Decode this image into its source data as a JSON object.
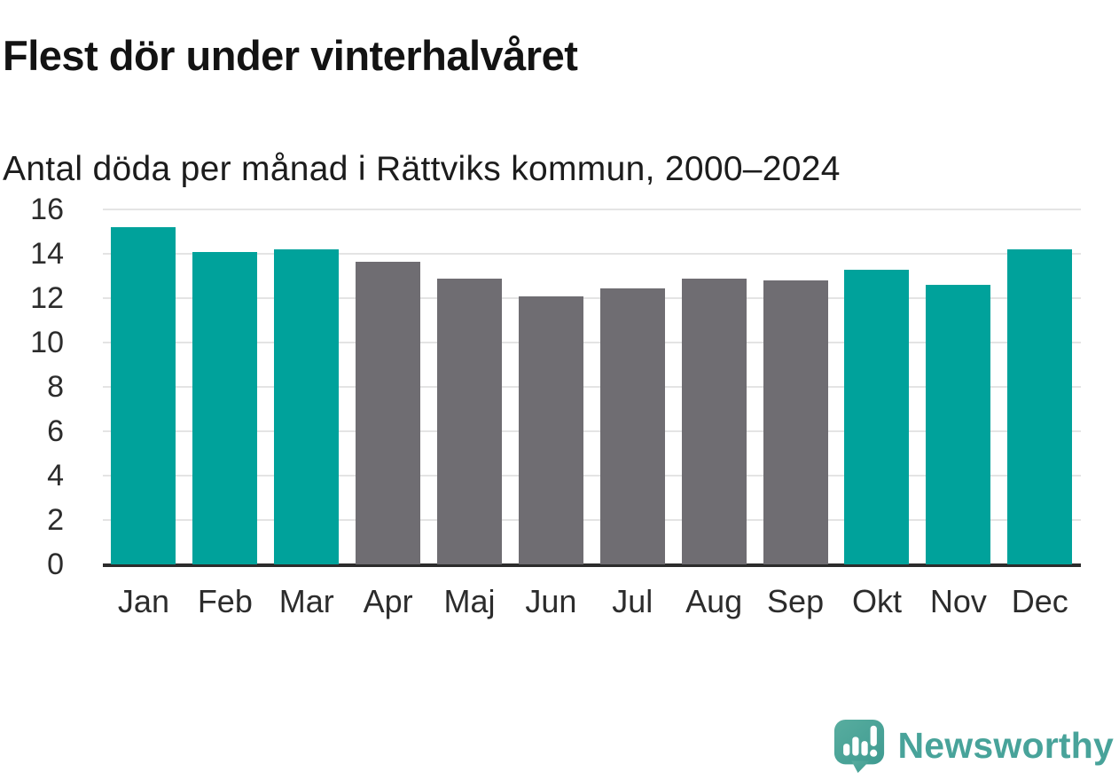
{
  "chart_data": {
    "type": "bar",
    "title": "Flest dör under vinterhalvåret",
    "subtitle": "Antal döda per månad i Rättviks kommun, 2000–2024",
    "categories": [
      "Jan",
      "Feb",
      "Mar",
      "Apr",
      "Maj",
      "Jun",
      "Jul",
      "Aug",
      "Sep",
      "Okt",
      "Nov",
      "Dec"
    ],
    "values": [
      15.2,
      14.1,
      14.2,
      13.65,
      12.9,
      12.1,
      12.45,
      12.9,
      12.8,
      13.3,
      12.6,
      14.2
    ],
    "bar_colors": [
      "#00a29b",
      "#00a29b",
      "#00a29b",
      "#6f6d72",
      "#6f6d72",
      "#6f6d72",
      "#6f6d72",
      "#6f6d72",
      "#6f6d72",
      "#00a29b",
      "#00a29b",
      "#00a29b"
    ],
    "xlabel": "",
    "ylabel": "",
    "ylim": [
      0,
      16
    ],
    "yticks": [
      0,
      2,
      4,
      6,
      8,
      10,
      12,
      14,
      16
    ],
    "grid": true,
    "legend_position": "none",
    "colors": {
      "winter_accent": "#00a29b",
      "summer_neutral": "#6f6d72",
      "gridline": "#e4e4e4",
      "axis_line": "#2c2c2c",
      "text": "#2c2c2c"
    }
  },
  "branding": {
    "logo_text": "Newsworthy",
    "logo_text_color": "#48a39a",
    "logo_icon": "newsworthy-speech-bubble-bar-chart-icon",
    "logo_icon_color": "#4ba69b"
  }
}
